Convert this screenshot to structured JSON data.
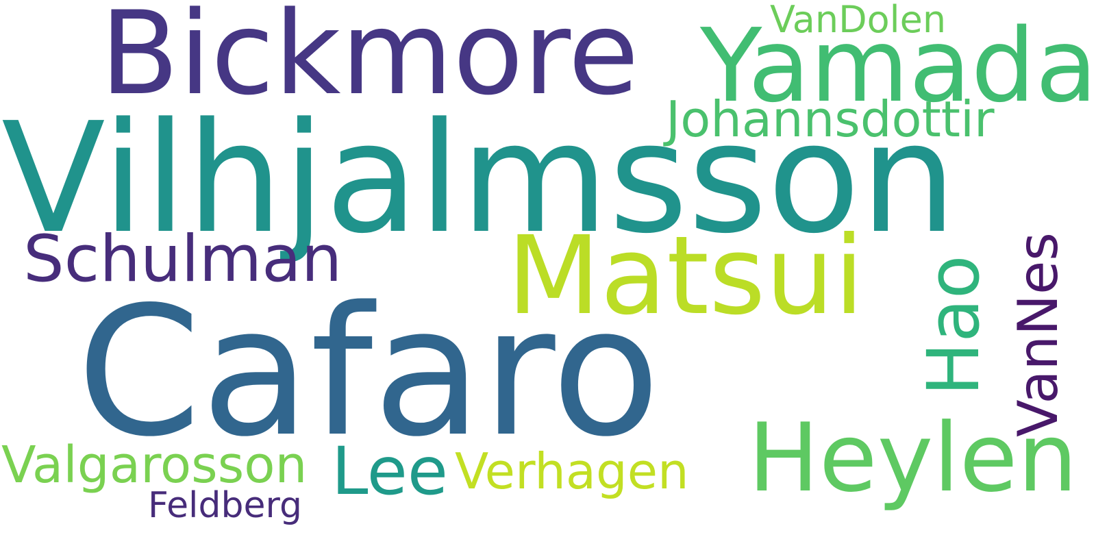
{
  "word_cloud": {
    "words": [
      {
        "text": "Cafaro",
        "color": "#31668e"
      },
      {
        "text": "Vilhjalmsson",
        "color": "#20938c"
      },
      {
        "text": "Bickmore",
        "color": "#463784"
      },
      {
        "text": "Yamada",
        "color": "#41bd72"
      },
      {
        "text": "Matsui",
        "color": "#bbdd26"
      },
      {
        "text": "Heylen",
        "color": "#5ec962"
      },
      {
        "text": "Johannsdottir",
        "color": "#4ac16d"
      },
      {
        "text": "Schulman",
        "color": "#472d7b"
      },
      {
        "text": "Lee",
        "color": "#1f9a8a"
      },
      {
        "text": "Valgarosson",
        "color": "#7ad151"
      },
      {
        "text": "Verhagen",
        "color": "#c2df23"
      },
      {
        "text": "Feldberg",
        "color": "#472c7a"
      },
      {
        "text": "VanDolen",
        "color": "#6ccd5a"
      },
      {
        "text": "Hao",
        "color": "#2fb47c"
      },
      {
        "text": "VanNes",
        "color": "#48186a"
      }
    ]
  }
}
